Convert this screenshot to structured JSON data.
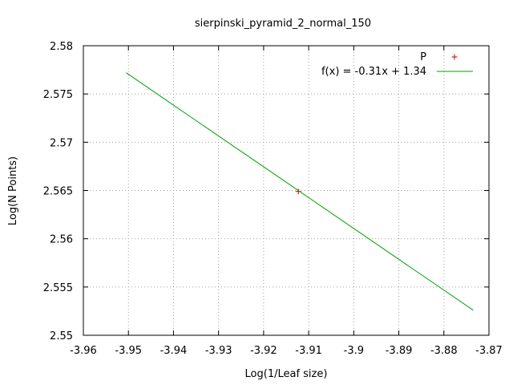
{
  "chart_data": {
    "type": "scatter",
    "title": "sierpinski_pyramid_2_normal_150",
    "xlabel": "Log(1/Leaf size)",
    "ylabel": "Log(N Points)",
    "xlim": [
      -3.96,
      -3.87
    ],
    "ylim": [
      2.55,
      2.58
    ],
    "xticks": [
      "-3.96",
      "-3.95",
      "-3.94",
      "-3.93",
      "-3.92",
      "-3.91",
      "-3.9",
      "-3.89",
      "-3.88",
      "-3.87"
    ],
    "yticks": [
      "2.55",
      "2.555",
      "2.56",
      "2.565",
      "2.57",
      "2.575",
      "2.58"
    ],
    "grid": true,
    "legend_position": "top-right",
    "series": [
      {
        "name": "P",
        "kind": "points",
        "marker": "+",
        "color": "#cc0000",
        "points": [
          {
            "x": -3.9123,
            "y": 2.5649
          }
        ]
      },
      {
        "name": "f(x) = -0.31x + 1.34",
        "kind": "line",
        "color": "#00a000",
        "points": [
          {
            "x": -3.9505,
            "y": 2.5772
          },
          {
            "x": -3.8735,
            "y": 2.5526
          }
        ]
      }
    ]
  }
}
